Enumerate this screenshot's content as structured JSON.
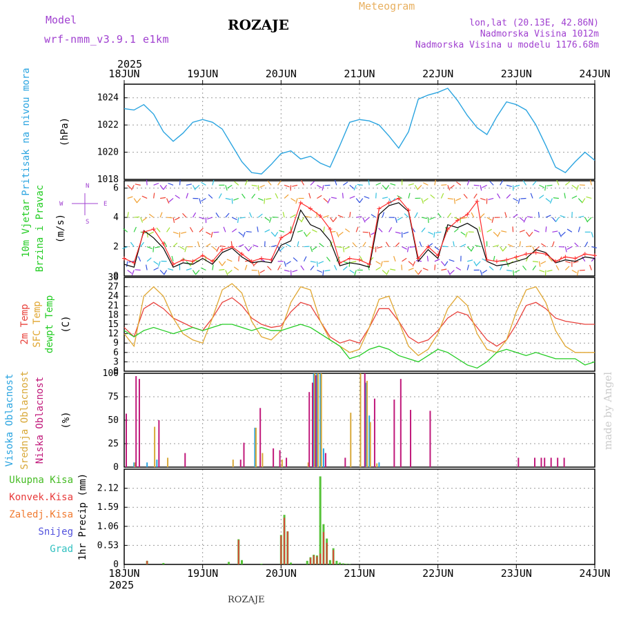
{
  "header": {
    "model_label": "Model",
    "model_name": "wrf-nmm_v3.9.1 e1km",
    "station_title": "ROZAJE",
    "product_title": "Meteogram",
    "lonlat": "lon,lat (20.13E, 42.86N)",
    "elevation": "Nadmorska Visina 1012m",
    "model_elevation": "Nadmorska Visina u modelu 1176.68m",
    "year_top": "2025",
    "year_bottom": "2025",
    "footer_station": "ROZAJE",
    "credit": "made by Angel"
  },
  "colors": {
    "pressure": "#2aa4e0",
    "wind_speed": "#000000",
    "gust": "#ff2a2a",
    "temp2m": "#e8403a",
    "sfc_temp": "#e0a630",
    "dewpt": "#22cc22",
    "cloud_high": "#2aa4e0",
    "cloud_mid": "#d8a838",
    "cloud_low": "#c0187a",
    "precip_total": "#44bb22",
    "precip_conv": "#e83a3a",
    "precip_frozen": "#f07a30",
    "snow": "#5050dd",
    "graupel": "#30c0c0",
    "credit": "#cccccc",
    "header_purple": "#a040d0",
    "header_orange": "#e8b060"
  },
  "chart_data": [
    {
      "type": "line",
      "panel": "pressure",
      "ylabel_outer": "Pritisak na nivou mora",
      "ylabel_inner": "(hPa)",
      "ylim": [
        1018,
        1025
      ],
      "yticks": [
        1018,
        1020,
        1022,
        1024
      ],
      "x_hours": [
        0,
        3,
        6,
        9,
        12,
        15,
        18,
        21,
        24,
        27,
        30,
        33,
        36,
        39,
        42,
        45,
        48,
        51,
        54,
        57,
        60,
        63,
        66,
        69,
        72,
        75,
        78,
        81,
        84,
        87,
        90,
        93,
        96,
        99,
        102,
        105,
        108,
        111,
        114,
        117,
        120,
        123,
        126,
        129,
        132,
        135,
        138,
        141,
        144
      ],
      "values": [
        1023.2,
        1023.1,
        1023.5,
        1022.8,
        1021.5,
        1020.8,
        1021.4,
        1022.2,
        1022.4,
        1022.2,
        1021.7,
        1020.5,
        1019.3,
        1018.5,
        1018.4,
        1019.1,
        1019.9,
        1020.1,
        1019.5,
        1019.7,
        1019.2,
        1018.9,
        1020.5,
        1022.2,
        1022.4,
        1022.3,
        1022.0,
        1021.2,
        1020.3,
        1021.5,
        1023.9,
        1024.2,
        1024.4,
        1024.7,
        1023.8,
        1022.7,
        1021.8,
        1021.3,
        1022.6,
        1023.7,
        1023.5,
        1023.1,
        1022.0,
        1020.5,
        1018.9,
        1018.5,
        1019.3,
        1020.0,
        1019.4
      ]
    },
    {
      "type": "line",
      "panel": "wind",
      "ylabel_outer": "10m Vjetar Brzina i Pravac",
      "ylabel_inner": "(m/s)",
      "compass": [
        "N",
        "S",
        "W",
        "E"
      ],
      "ylim": [
        0,
        6.5
      ],
      "yticks": [
        0,
        2,
        4,
        6
      ],
      "series": [
        {
          "name": "wind_speed",
          "x_hours": [
            0,
            3,
            6,
            9,
            12,
            15,
            18,
            21,
            24,
            27,
            30,
            33,
            36,
            39,
            42,
            45,
            48,
            51,
            54,
            57,
            60,
            63,
            66,
            69,
            72,
            75,
            78,
            81,
            84,
            87,
            90,
            93,
            96,
            99,
            102,
            105,
            108,
            111,
            114,
            117,
            120,
            123,
            126,
            129,
            132,
            135,
            138,
            141,
            144
          ],
          "values": [
            0.8,
            0.6,
            3.1,
            2.6,
            1.9,
            0.6,
            0.9,
            0.8,
            1.2,
            0.8,
            1.6,
            1.9,
            1.3,
            0.9,
            1.0,
            0.9,
            2.1,
            2.4,
            4.5,
            3.5,
            3.2,
            2.4,
            0.7,
            0.9,
            0.8,
            0.6,
            4.2,
            4.8,
            5.0,
            4.4,
            1.0,
            1.8,
            1.2,
            3.5,
            3.3,
            3.6,
            3.2,
            1.0,
            0.7,
            0.8,
            1.0,
            1.2,
            1.8,
            1.6,
            0.9,
            1.1,
            1.0,
            1.3,
            1.2
          ]
        },
        {
          "name": "gust",
          "x_hours": [
            0,
            3,
            6,
            9,
            12,
            15,
            18,
            21,
            24,
            27,
            30,
            33,
            36,
            39,
            42,
            45,
            48,
            51,
            54,
            57,
            60,
            63,
            66,
            69,
            72,
            75,
            78,
            81,
            84,
            87,
            90,
            93,
            96,
            99,
            102,
            105,
            108,
            111,
            114,
            117,
            120,
            123,
            126,
            129,
            132,
            135,
            138,
            141,
            144
          ],
          "values": [
            1.2,
            0.9,
            3.0,
            3.2,
            2.2,
            0.8,
            1.1,
            1.0,
            1.4,
            1.0,
            1.8,
            2.0,
            1.5,
            1.0,
            1.2,
            1.1,
            2.6,
            3.0,
            5.0,
            4.6,
            4.1,
            3.2,
            0.9,
            1.2,
            1.1,
            0.8,
            4.6,
            5.0,
            5.3,
            4.5,
            1.2,
            2.0,
            1.4,
            3.2,
            3.8,
            4.2,
            5.1,
            1.1,
            1.0,
            1.1,
            1.3,
            1.5,
            1.6,
            1.5,
            1.0,
            1.3,
            1.2,
            1.5,
            1.4
          ]
        }
      ]
    },
    {
      "type": "line",
      "panel": "temperature",
      "ylabel_outer": [
        "2m Temp",
        "SFC Temp",
        "dewpt Temp"
      ],
      "ylabel_inner": "(C)",
      "ylim": [
        0,
        30
      ],
      "yticks": [
        0,
        3,
        6,
        9,
        12,
        15,
        18,
        21,
        24,
        27,
        30
      ],
      "x_hours": [
        0,
        3,
        6,
        9,
        12,
        15,
        18,
        21,
        24,
        27,
        30,
        33,
        36,
        39,
        42,
        45,
        48,
        51,
        54,
        57,
        60,
        63,
        66,
        69,
        72,
        75,
        78,
        81,
        84,
        87,
        90,
        93,
        96,
        99,
        102,
        105,
        108,
        111,
        114,
        117,
        120,
        123,
        126,
        129,
        132,
        135,
        138,
        141,
        144
      ],
      "series": [
        {
          "name": "2m Temp",
          "values": [
            14,
            11,
            20,
            22,
            20,
            17,
            15.5,
            14,
            13,
            17,
            22,
            23.5,
            21,
            17,
            15,
            14,
            14.5,
            19,
            22,
            21,
            16,
            11,
            9,
            10,
            9,
            14,
            20,
            20,
            16,
            11,
            9,
            10,
            13,
            17,
            19,
            18,
            14,
            10,
            8,
            10,
            15,
            21,
            22,
            20,
            17,
            16,
            15.5,
            15,
            15
          ]
        },
        {
          "name": "SFC Temp",
          "values": [
            12,
            8,
            24,
            27,
            24,
            17,
            12,
            10,
            9,
            17,
            26,
            28,
            25,
            16,
            11,
            10,
            13,
            22,
            27,
            26,
            16,
            10,
            8,
            6,
            7,
            14,
            23,
            24,
            16,
            8,
            5,
            7,
            12,
            20,
            24,
            21,
            12,
            7,
            6,
            10,
            19,
            26,
            27,
            22,
            13,
            8,
            6,
            6,
            6
          ]
        },
        {
          "name": "dewpt Temp",
          "values": [
            13,
            11,
            13,
            14,
            13,
            12,
            13,
            14,
            13,
            14,
            15,
            15,
            14,
            13,
            14,
            13,
            13,
            14,
            15,
            14,
            12,
            10,
            8,
            4,
            5,
            7,
            8,
            7,
            5,
            4,
            3,
            5,
            7,
            6,
            4,
            2,
            1,
            3,
            6,
            7,
            6,
            5,
            6,
            5,
            4,
            4,
            4,
            2,
            3
          ]
        }
      ]
    },
    {
      "type": "bar",
      "panel": "clouds",
      "ylabel_outer": [
        "Visoka Oblacnost",
        "Srednja Oblacnost",
        "Niska Oblacnost"
      ],
      "ylabel_inner": "(%)",
      "ylim": [
        0,
        100
      ],
      "yticks": [
        0,
        25,
        50,
        75,
        100
      ],
      "series": [
        {
          "name": "Visoka Oblacnost",
          "x_hours": [
            3,
            7,
            10,
            40,
            58,
            59,
            60,
            61,
            74,
            75,
            78,
            82,
            85,
            88,
            89
          ],
          "values": [
            5,
            5,
            8,
            42,
            100,
            100,
            100,
            20,
            90,
            55,
            5,
            0,
            0,
            0,
            0
          ]
        },
        {
          "name": "Srednja Oblacnost",
          "x_hours": [
            3,
            9,
            13,
            33,
            40,
            42,
            48,
            56,
            58,
            59,
            60,
            69,
            72,
            74,
            75,
            77
          ],
          "values": [
            5,
            43,
            10,
            8,
            42,
            15,
            8,
            5,
            100,
            100,
            100,
            58,
            100,
            92,
            48,
            4
          ]
        },
        {
          "name": "Niska Oblacnost",
          "x_hours": [
            0,
            3,
            4,
            10,
            18,
            35,
            36,
            41,
            45,
            47,
            49,
            56,
            57,
            58,
            61,
            67,
            73,
            76,
            82,
            84,
            87,
            93,
            120,
            125,
            127,
            128,
            130,
            132,
            134
          ],
          "values": [
            57,
            97,
            94,
            50,
            15,
            8,
            26,
            63,
            20,
            18,
            10,
            80,
            90,
            98,
            15,
            10,
            100,
            73,
            72,
            94,
            61,
            60,
            10,
            10,
            10,
            10,
            10,
            10,
            10
          ]
        }
      ]
    },
    {
      "type": "bar",
      "panel": "precipitation",
      "ylabel_outer": [
        "Ukupna Kisa",
        "Konvek.Kisa",
        "Zaledj.Kisa",
        "Snijeg",
        "Grad"
      ],
      "ylabel_inner": "1hr Precip (mm)",
      "ylim": [
        0,
        2.65
      ],
      "yticks": [
        0,
        0.53,
        1.06,
        1.59,
        2.12
      ],
      "series": [
        {
          "name": "Ukupna Kisa",
          "x_hours": [
            7,
            12,
            32,
            35,
            36,
            42,
            48,
            49,
            50,
            51,
            56,
            57,
            58,
            59,
            60,
            61,
            62,
            63,
            64,
            65,
            66,
            67,
            68,
            69
          ],
          "values": [
            0.1,
            0.04,
            0.07,
            0.7,
            0.12,
            0.02,
            0.82,
            1.38,
            0.92,
            0.05,
            0.1,
            0.2,
            0.27,
            0.25,
            2.45,
            1.12,
            0.72,
            0.12,
            0.45,
            0.1,
            0.05,
            0.03,
            0.02,
            0.01
          ]
        },
        {
          "name": "Konvek.Kisa",
          "x_hours": [
            7,
            35,
            48,
            49,
            50,
            57,
            58,
            59,
            60,
            61,
            62,
            64
          ],
          "values": [
            0.1,
            0.68,
            0.8,
            1.3,
            0.92,
            0.18,
            0.25,
            0.22,
            0.3,
            0.9,
            0.6,
            0.4
          ]
        }
      ]
    }
  ],
  "x_axis": {
    "tick_labels": [
      "18JUN",
      "19JUN",
      "20JUN",
      "21JUN",
      "22JUN",
      "23JUN",
      "24JUN"
    ],
    "hours_span": 144
  }
}
